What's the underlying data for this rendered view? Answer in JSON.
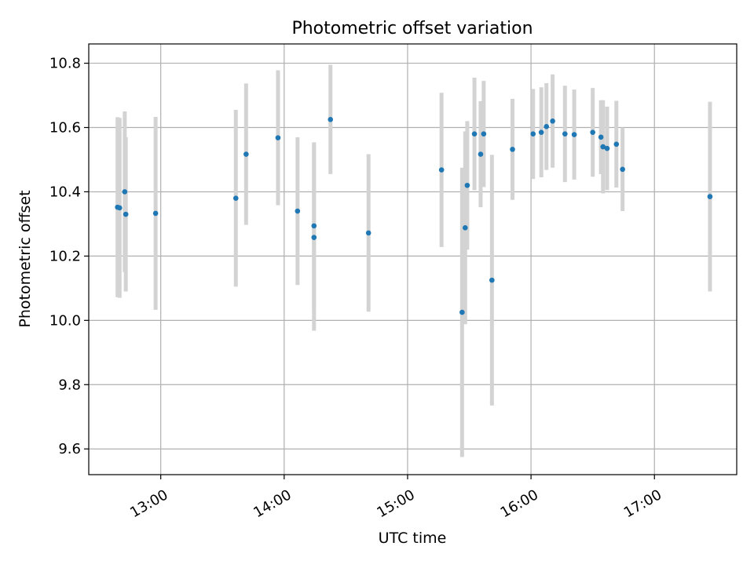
{
  "chart_data": {
    "type": "scatter",
    "title": "Photometric offset variation",
    "xlabel": "UTC time",
    "ylabel": "Photometric offset",
    "x_axis": {
      "kind": "time",
      "range": [
        "12:25",
        "17:40"
      ],
      "ticks": [
        "13:00",
        "14:00",
        "15:00",
        "16:00",
        "17:00"
      ],
      "tick_rotation": "30deg"
    },
    "y_axis": {
      "range": [
        9.52,
        10.86
      ],
      "ticks": [
        "9.6",
        "9.8",
        "10.0",
        "10.2",
        "10.4",
        "10.6",
        "10.8"
      ]
    },
    "grid": true,
    "colors": {
      "marker": "#1f77b4",
      "errorbar": "#d3d3d3",
      "grid": "#b0b0b0"
    },
    "series": [
      {
        "points": [
          {
            "x": "12:39:00",
            "y": 10.352,
            "err": 0.28
          },
          {
            "x": "12:40:00",
            "y": 10.35,
            "err": 0.28
          },
          {
            "x": "12:42:30",
            "y": 10.4,
            "err": 0.25
          },
          {
            "x": "12:43:00",
            "y": 10.33,
            "err": 0.24
          },
          {
            "x": "12:57:30",
            "y": 10.333,
            "err": 0.3
          },
          {
            "x": "13:36:30",
            "y": 10.38,
            "err": 0.275
          },
          {
            "x": "13:41:30",
            "y": 10.517,
            "err": 0.22
          },
          {
            "x": "13:57:00",
            "y": 10.568,
            "err": 0.21
          },
          {
            "x": "14:06:30",
            "y": 10.34,
            "err": 0.23
          },
          {
            "x": "14:14:30",
            "y": 10.294,
            "err": 0.26
          },
          {
            "x": "14:14:30",
            "y": 10.258,
            "err": 0.29
          },
          {
            "x": "14:22:30",
            "y": 10.625,
            "err": 0.17
          },
          {
            "x": "14:41:00",
            "y": 10.272,
            "err": 0.245
          },
          {
            "x": "15:16:30",
            "y": 10.468,
            "err": 0.24
          },
          {
            "x": "15:26:30",
            "y": 10.025,
            "err": 0.45
          },
          {
            "x": "15:28:00",
            "y": 10.288,
            "err": 0.3
          },
          {
            "x": "15:29:00",
            "y": 10.42,
            "err": 0.2
          },
          {
            "x": "15:32:30",
            "y": 10.58,
            "err": 0.175
          },
          {
            "x": "15:35:30",
            "y": 10.517,
            "err": 0.165
          },
          {
            "x": "15:37:00",
            "y": 10.58,
            "err": 0.165
          },
          {
            "x": "15:41:00",
            "y": 10.125,
            "err": 0.39
          },
          {
            "x": "15:51:00",
            "y": 10.532,
            "err": 0.157
          },
          {
            "x": "16:01:00",
            "y": 10.58,
            "err": 0.14
          },
          {
            "x": "16:05:00",
            "y": 10.585,
            "err": 0.14
          },
          {
            "x": "16:07:30",
            "y": 10.603,
            "err": 0.135
          },
          {
            "x": "16:10:30",
            "y": 10.62,
            "err": 0.145
          },
          {
            "x": "16:16:30",
            "y": 10.58,
            "err": 0.15
          },
          {
            "x": "16:21:00",
            "y": 10.578,
            "err": 0.14
          },
          {
            "x": "16:30:00",
            "y": 10.585,
            "err": 0.138
          },
          {
            "x": "16:34:00",
            "y": 10.57,
            "err": 0.115
          },
          {
            "x": "16:35:00",
            "y": 10.54,
            "err": 0.145
          },
          {
            "x": "16:37:00",
            "y": 10.535,
            "err": 0.13
          },
          {
            "x": "16:41:30",
            "y": 10.548,
            "err": 0.135
          },
          {
            "x": "16:44:30",
            "y": 10.47,
            "err": 0.13
          },
          {
            "x": "17:27:00",
            "y": 10.385,
            "err": 0.295
          }
        ]
      }
    ]
  }
}
